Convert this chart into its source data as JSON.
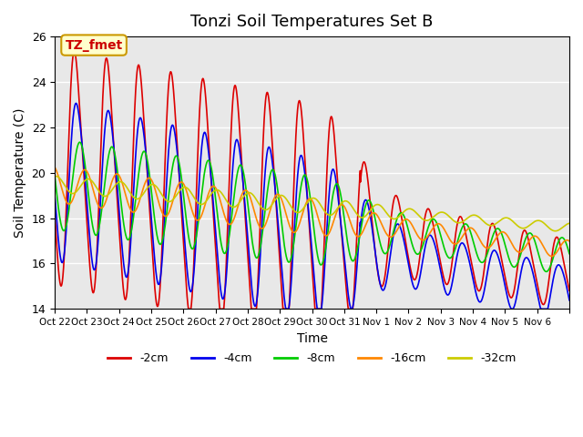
{
  "title": "Tonzi Soil Temperatures Set B",
  "xlabel": "Time",
  "ylabel": "Soil Temperature (C)",
  "ylim": [
    14,
    26
  ],
  "n_days": 16,
  "background_color": "#e8e8e8",
  "annotation_text": "TZ_fmet",
  "annotation_color": "#cc0000",
  "annotation_bg": "#ffffcc",
  "annotation_border": "#cc9900",
  "tick_labels": [
    "Oct 22",
    "Oct 23",
    "Oct 24",
    "Oct 25",
    "Oct 26",
    "Oct 27",
    "Oct 28",
    "Oct 29",
    "Oct 30",
    "Oct 31",
    "Nov 1",
    "Nov 2",
    "Nov 3",
    "Nov 4",
    "Nov 5",
    "Nov 6",
    ""
  ],
  "legend_labels": [
    "-2cm",
    "-4cm",
    "-8cm",
    "-16cm",
    "-32cm"
  ],
  "legend_colors": [
    "#dd0000",
    "#0000ee",
    "#00cc00",
    "#ff8800",
    "#cccc00"
  ]
}
